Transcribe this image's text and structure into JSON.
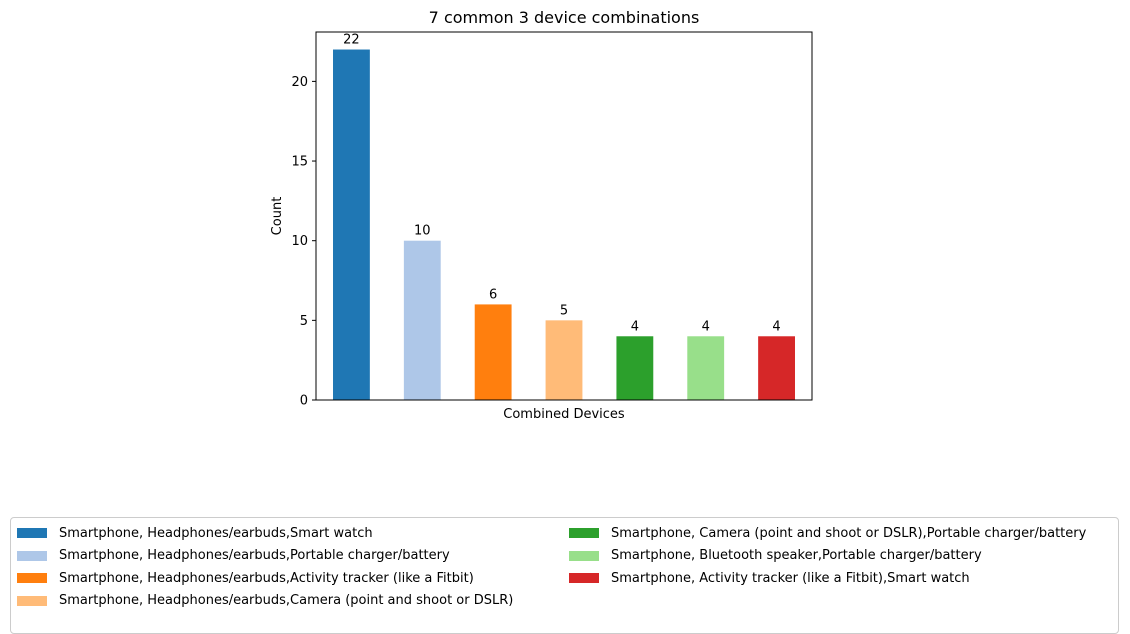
{
  "chart_data": {
    "type": "bar",
    "title": "7 common 3 device combinations",
    "xlabel": "Combined Devices",
    "ylabel": "Count",
    "ylim": [
      0,
      23.1
    ],
    "yticks": [
      0,
      5,
      10,
      15,
      20
    ],
    "grid": false,
    "legend_position": "bottom",
    "categories": [
      "Smartphone, Headphones/earbuds,Smart watch",
      "Smartphone, Headphones/earbuds,Portable charger/battery",
      "Smartphone, Headphones/earbuds,Activity tracker (like a Fitbit)",
      "Smartphone, Headphones/earbuds,Camera (point and shoot or DSLR)",
      "Smartphone, Camera (point and shoot or DSLR),Portable charger/battery",
      "Smartphone, Bluetooth speaker,Portable charger/battery",
      "Smartphone, Activity tracker (like a Fitbit),Smart watch"
    ],
    "values": [
      22,
      10,
      6,
      5,
      4,
      4,
      4
    ],
    "colors": [
      "#1f77b4",
      "#aec7e8",
      "#ff7f0e",
      "#ffbb78",
      "#2ca02c",
      "#98df8a",
      "#d62728"
    ]
  }
}
